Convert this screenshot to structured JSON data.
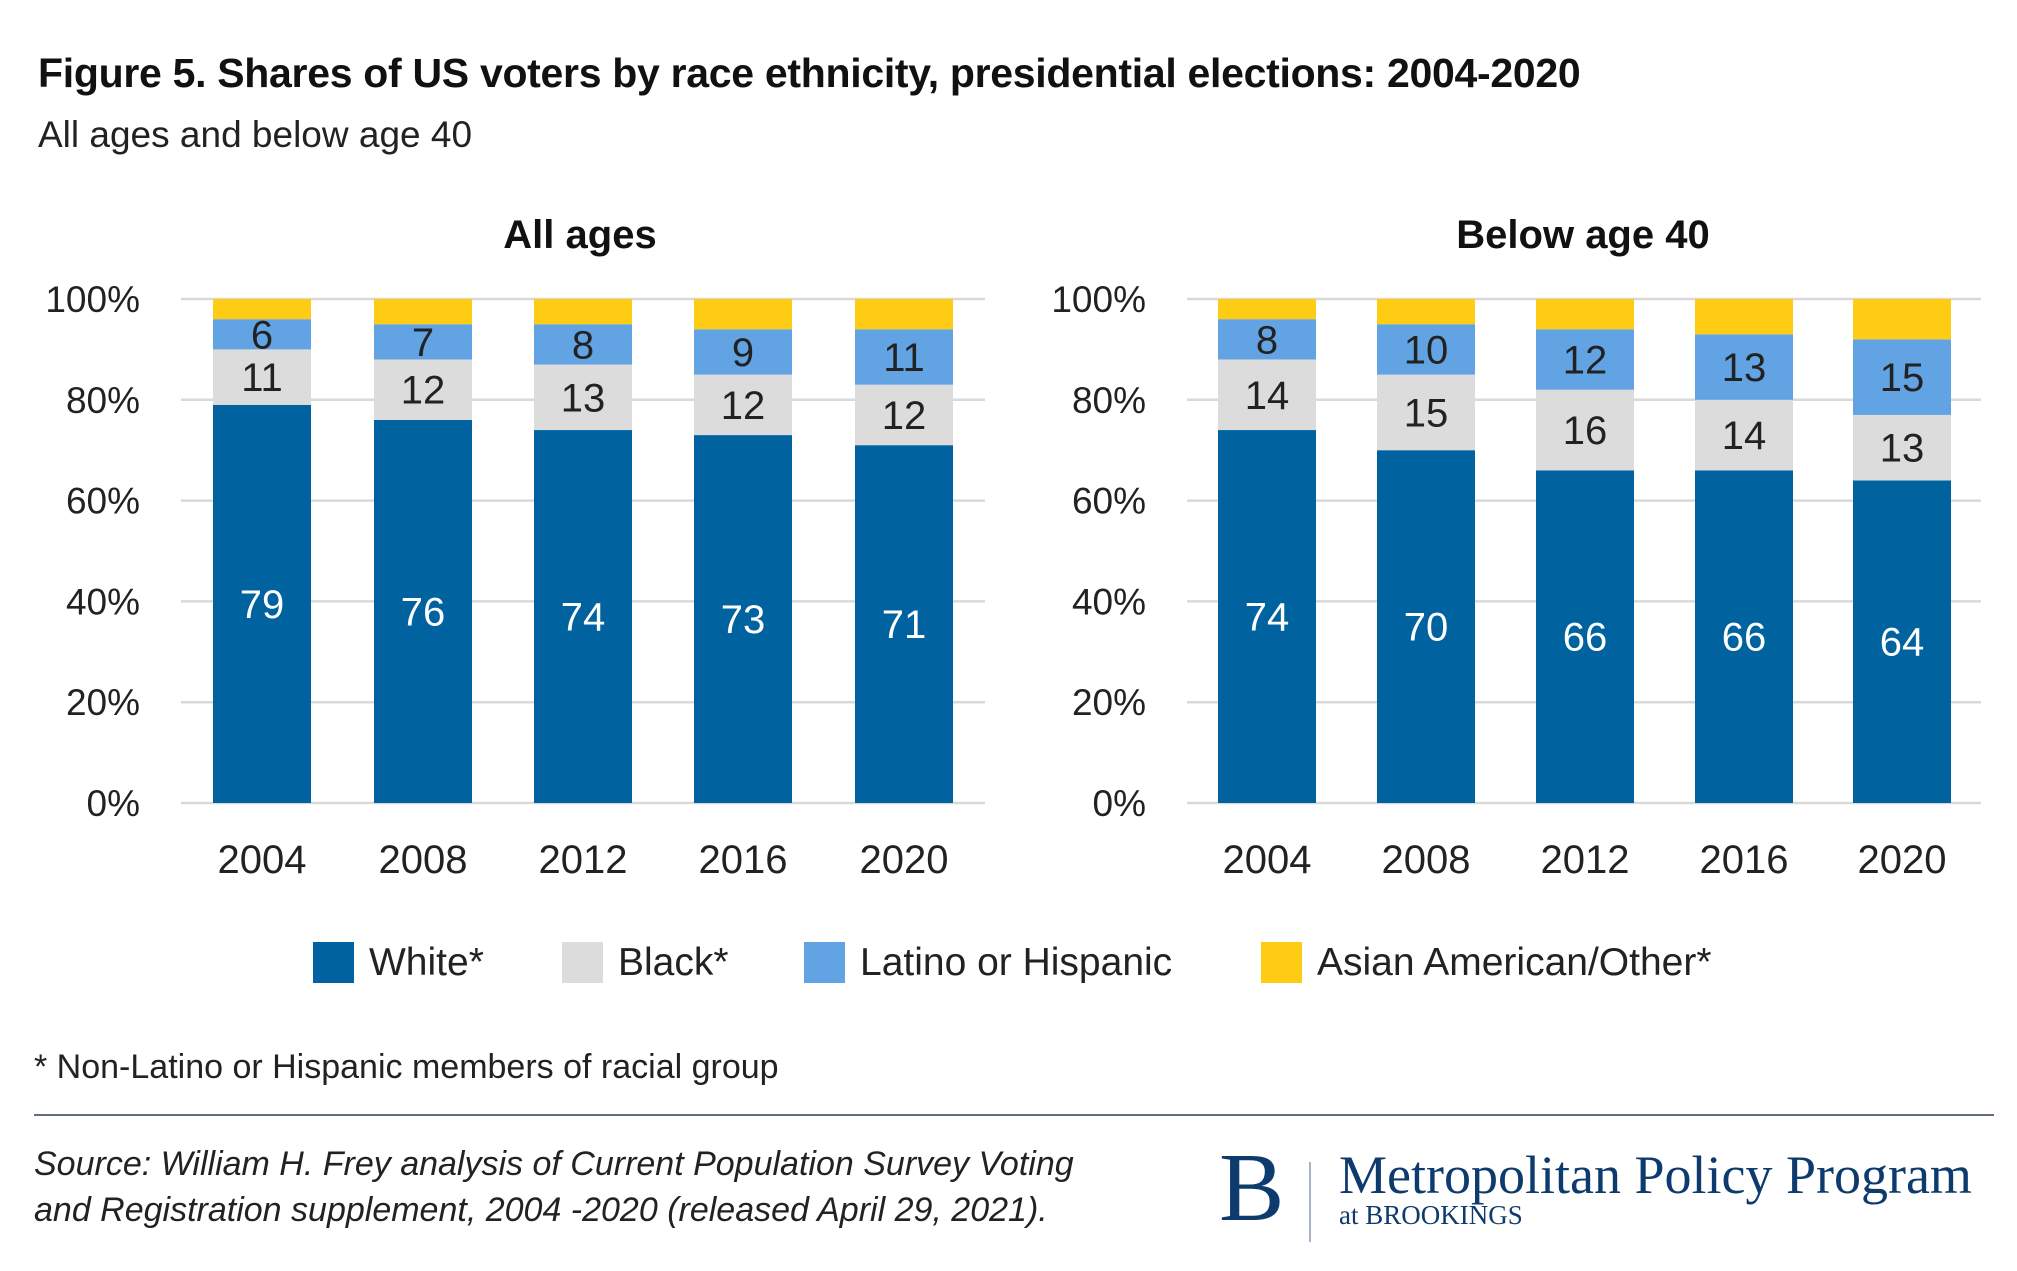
{
  "title": "Figure 5. Shares of US voters by race ethnicity, presidential elections: 2004-2020",
  "subtitle": "All ages and below age 40",
  "legend": [
    {
      "label": "White*",
      "color": "#0063a0"
    },
    {
      "label": "Black*",
      "color": "#dcdcdc"
    },
    {
      "label": "Latino or Hispanic",
      "color": "#62a4e3"
    },
    {
      "label": "Asian American/Other*",
      "color": "#ffcc14"
    }
  ],
  "footnote": "* Non-Latino or Hispanic members of racial group",
  "source": [
    "Source: William H. Frey analysis of Current Population Survey Voting",
    "and Registration supplement, 2004 -2020 (released April 29, 2021)."
  ],
  "logo": {
    "letter": "B",
    "main": "Metropolitan Policy Program",
    "sub": "at BROOKINGS"
  },
  "chart_data": [
    {
      "type": "bar",
      "stacked": true,
      "title": "All ages",
      "categories": [
        "2004",
        "2008",
        "2012",
        "2016",
        "2020"
      ],
      "ylim": [
        0,
        100
      ],
      "yticks": [
        "0%",
        "20%",
        "40%",
        "60%",
        "80%",
        "100%"
      ],
      "grid": true,
      "legend_position": "bottom",
      "series": [
        {
          "name": "White*",
          "values": [
            79,
            76,
            74,
            73,
            71
          ],
          "labeled": true
        },
        {
          "name": "Black*",
          "values": [
            11,
            12,
            13,
            12,
            12
          ],
          "labeled": true
        },
        {
          "name": "Latino or Hispanic",
          "values": [
            6,
            7,
            8,
            9,
            11
          ],
          "labeled": true
        },
        {
          "name": "Asian American/Other*",
          "values": [
            4,
            5,
            5,
            6,
            6
          ],
          "labeled": false
        }
      ]
    },
    {
      "type": "bar",
      "stacked": true,
      "title": "Below age 40",
      "categories": [
        "2004",
        "2008",
        "2012",
        "2016",
        "2020"
      ],
      "ylim": [
        0,
        100
      ],
      "yticks": [
        "0%",
        "20%",
        "40%",
        "60%",
        "80%",
        "100%"
      ],
      "grid": true,
      "legend_position": "bottom",
      "series": [
        {
          "name": "White*",
          "values": [
            74,
            70,
            66,
            66,
            64
          ],
          "labeled": true
        },
        {
          "name": "Black*",
          "values": [
            14,
            15,
            16,
            14,
            13
          ],
          "labeled": true
        },
        {
          "name": "Latino or Hispanic",
          "values": [
            8,
            10,
            12,
            13,
            15
          ],
          "labeled": true
        },
        {
          "name": "Asian American/Other*",
          "values": [
            4,
            5,
            6,
            7,
            8
          ],
          "labeled": false
        }
      ]
    }
  ]
}
